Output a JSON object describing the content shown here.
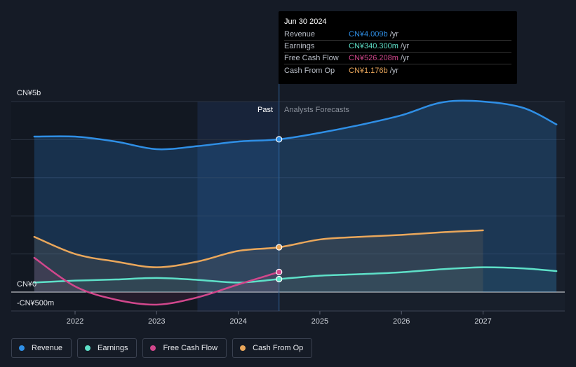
{
  "chart_data": {
    "type": "line",
    "y_axis_labels": [
      "CN¥5b",
      "CN¥0",
      "-CN¥500m"
    ],
    "x_tick_labels": [
      "2022",
      "2023",
      "2024",
      "2025",
      "2026",
      "2027"
    ],
    "ylim": [
      -500,
      5000
    ],
    "past_label": "Past",
    "forecast_label": "Analysts Forecasts",
    "series": [
      {
        "name": "Revenue",
        "color": "#2f8fe6",
        "points": [
          [
            2021.5,
            4080
          ],
          [
            2022.0,
            4080
          ],
          [
            2022.5,
            3950
          ],
          [
            2023.0,
            3750
          ],
          [
            2023.5,
            3830
          ],
          [
            2024.0,
            3950
          ],
          [
            2024.5,
            4009
          ],
          [
            2025.0,
            4180
          ],
          [
            2025.5,
            4390
          ],
          [
            2026.0,
            4640
          ],
          [
            2026.5,
            4980
          ],
          [
            2027.0,
            5000
          ],
          [
            2027.5,
            4830
          ],
          [
            2027.9,
            4400
          ]
        ]
      },
      {
        "name": "Earnings",
        "color": "#5ee0c8",
        "points": [
          [
            2021.5,
            250
          ],
          [
            2022.0,
            300
          ],
          [
            2022.5,
            330
          ],
          [
            2023.0,
            370
          ],
          [
            2023.5,
            320
          ],
          [
            2024.0,
            250
          ],
          [
            2024.5,
            340.3
          ],
          [
            2025.0,
            430
          ],
          [
            2025.5,
            470
          ],
          [
            2026.0,
            520
          ],
          [
            2026.5,
            600
          ],
          [
            2027.0,
            650
          ],
          [
            2027.5,
            620
          ],
          [
            2027.9,
            550
          ]
        ]
      },
      {
        "name": "Free Cash Flow",
        "color": "#d1478c",
        "points": [
          [
            2021.5,
            900
          ],
          [
            2022.0,
            150
          ],
          [
            2022.5,
            -200
          ],
          [
            2023.0,
            -330
          ],
          [
            2023.5,
            -140
          ],
          [
            2024.0,
            200
          ],
          [
            2024.5,
            526.208
          ]
        ]
      },
      {
        "name": "Cash From Op",
        "color": "#eaa75b",
        "points": [
          [
            2021.5,
            1450
          ],
          [
            2022.0,
            1000
          ],
          [
            2022.5,
            800
          ],
          [
            2023.0,
            650
          ],
          [
            2023.5,
            800
          ],
          [
            2024.0,
            1080
          ],
          [
            2024.5,
            1176
          ],
          [
            2025.0,
            1380
          ],
          [
            2025.5,
            1450
          ],
          [
            2026.0,
            1500
          ],
          [
            2026.5,
            1570
          ],
          [
            2027.0,
            1620
          ]
        ]
      }
    ],
    "grid": true,
    "legend_position": "bottom-left"
  },
  "tooltip": {
    "date": "Jun 30 2024",
    "rows": [
      {
        "label": "Revenue",
        "value": "CN¥4.009b",
        "unit": " /yr",
        "color": "#2f8fe6"
      },
      {
        "label": "Earnings",
        "value": "CN¥340.300m",
        "unit": " /yr",
        "color": "#5ee0c8"
      },
      {
        "label": "Free Cash Flow",
        "value": "CN¥526.208m",
        "unit": " /yr",
        "color": "#d1478c"
      },
      {
        "label": "Cash From Op",
        "value": "CN¥1.176b",
        "unit": " /yr",
        "color": "#eaa75b"
      }
    ]
  },
  "legend": [
    {
      "label": "Revenue",
      "color": "#2f8fe6"
    },
    {
      "label": "Earnings",
      "color": "#5ee0c8"
    },
    {
      "label": "Free Cash Flow",
      "color": "#d1478c"
    },
    {
      "label": "Cash From Op",
      "color": "#eaa75b"
    }
  ]
}
